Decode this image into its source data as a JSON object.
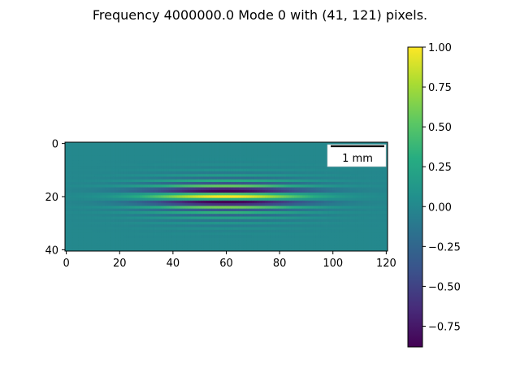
{
  "chart_data": {
    "type": "heatmap",
    "title": "Frequency 4000000.0 Mode 0 with (41, 121) pixels.",
    "shape": [
      41,
      121
    ],
    "xlim": [
      -0.5,
      120.5
    ],
    "ylim": [
      40.5,
      -0.5
    ],
    "x_ticks": [
      0,
      20,
      40,
      60,
      80,
      100,
      120
    ],
    "y_ticks": [
      0,
      20,
      40
    ],
    "colormap": "viridis",
    "clim": [
      -0.88,
      1.0
    ],
    "colorbar_ticks": [
      "1.00",
      "0.75",
      "0.50",
      "0.25",
      "0.00",
      "−0.25",
      "−0.50",
      "−0.75"
    ],
    "scale_bar_label": "1 mm",
    "row_profile": [
      {
        "row": 0,
        "value": 0.0
      },
      {
        "row": 1,
        "value": 0.0
      },
      {
        "row": 2,
        "value": 0.0
      },
      {
        "row": 3,
        "value": 0.0
      },
      {
        "row": 4,
        "value": 0.0
      },
      {
        "row": 5,
        "value": 0.0
      },
      {
        "row": 6,
        "value": 0.01
      },
      {
        "row": 7,
        "value": -0.02
      },
      {
        "row": 8,
        "value": 0.03
      },
      {
        "row": 9,
        "value": -0.05
      },
      {
        "row": 10,
        "value": 0.07
      },
      {
        "row": 11,
        "value": -0.1
      },
      {
        "row": 12,
        "value": 0.14
      },
      {
        "row": 13,
        "value": -0.2
      },
      {
        "row": 14,
        "value": 0.3
      },
      {
        "row": 15,
        "value": -0.4
      },
      {
        "row": 16,
        "value": 0.55
      },
      {
        "row": 17,
        "value": -0.65
      },
      {
        "row": 18,
        "value": -0.88
      },
      {
        "row": 19,
        "value": 0.45
      },
      {
        "row": 20,
        "value": 1.0
      },
      {
        "row": 21,
        "value": 0.3
      },
      {
        "row": 22,
        "value": -0.88
      },
      {
        "row": 23,
        "value": -0.6
      },
      {
        "row": 24,
        "value": 0.6
      },
      {
        "row": 25,
        "value": -0.35
      },
      {
        "row": 26,
        "value": 0.35
      },
      {
        "row": 27,
        "value": -0.25
      },
      {
        "row": 28,
        "value": 0.2
      },
      {
        "row": 29,
        "value": -0.14
      },
      {
        "row": 30,
        "value": 0.1
      },
      {
        "row": 31,
        "value": -0.07
      },
      {
        "row": 32,
        "value": 0.05
      },
      {
        "row": 33,
        "value": -0.03
      },
      {
        "row": 34,
        "value": 0.02
      },
      {
        "row": 35,
        "value": -0.01
      },
      {
        "row": 36,
        "value": 0.0
      },
      {
        "row": 37,
        "value": 0.0
      },
      {
        "row": 38,
        "value": 0.0
      },
      {
        "row": 39,
        "value": 0.0
      },
      {
        "row": 40,
        "value": 0.0
      }
    ],
    "column_envelope_center": 60,
    "column_envelope_width": 30
  }
}
